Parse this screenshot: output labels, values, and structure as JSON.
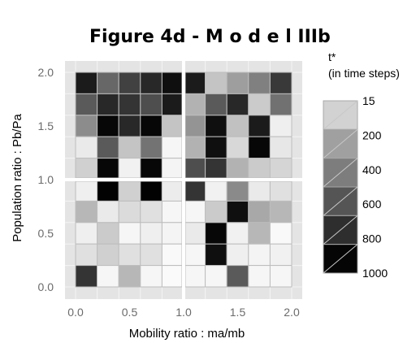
{
  "chart_data": {
    "type": "heatmap",
    "title": "Figure 4d - M o d e l IIIb",
    "xlabel": "Mobility ratio : ma/mb",
    "ylabel": "Population ratio : Pb/Pa",
    "xlim": [
      0.0,
      2.0
    ],
    "ylim": [
      0.0,
      2.0
    ],
    "x_ticks": [
      "0.0",
      "0.5",
      "1.0",
      "1.5",
      "2.0"
    ],
    "y_ticks": [
      "0.0",
      "0.5",
      "1.0",
      "1.5",
      "2.0"
    ],
    "x": [
      0.0,
      0.2,
      0.4,
      0.6,
      0.8,
      1.0,
      1.2,
      1.4,
      1.6,
      1.8,
      2.0
    ],
    "y": [
      0.0,
      0.2,
      0.4,
      0.6,
      0.8,
      1.0,
      1.2,
      1.4,
      1.6,
      1.8,
      2.0
    ],
    "panel_break": {
      "x": 1.0,
      "y": 1.0
    },
    "grid": true,
    "colorbar": {
      "title": "t*",
      "subtitle": "(in time steps)",
      "position": "right",
      "range": [
        15,
        1000
      ],
      "tick_labels": [
        "15",
        "200",
        "400",
        "600",
        "800",
        "1000"
      ],
      "colors": [
        "#d2d2d2",
        "#a0a0a0",
        "#7d7d7d",
        "#555555",
        "#2e2e2e",
        "#050505"
      ]
    },
    "values": [
      [
        900,
        600,
        750,
        850,
        950,
        900,
        230,
        380,
        500,
        780
      ],
      [
        650,
        850,
        800,
        700,
        900,
        300,
        650,
        850,
        200,
        560
      ],
      [
        450,
        980,
        850,
        980,
        230,
        420,
        950,
        240,
        900,
        60
      ],
      [
        80,
        650,
        230,
        550,
        30,
        300,
        950,
        150,
        980,
        90
      ],
      [
        180,
        980,
        50,
        980,
        40,
        700,
        800,
        300,
        200,
        160
      ],
      [
        60,
        1000,
        180,
        1000,
        70,
        800,
        50,
        460,
        80,
        120
      ],
      [
        280,
        80,
        140,
        120,
        30,
        30,
        200,
        950,
        340,
        280
      ],
      [
        60,
        200,
        30,
        60,
        40,
        80,
        980,
        50,
        280,
        20
      ],
      [
        120,
        180,
        120,
        120,
        20,
        30,
        950,
        60,
        40,
        50
      ],
      [
        800,
        30,
        280,
        30,
        10,
        30,
        30,
        650,
        30,
        30
      ]
    ]
  }
}
